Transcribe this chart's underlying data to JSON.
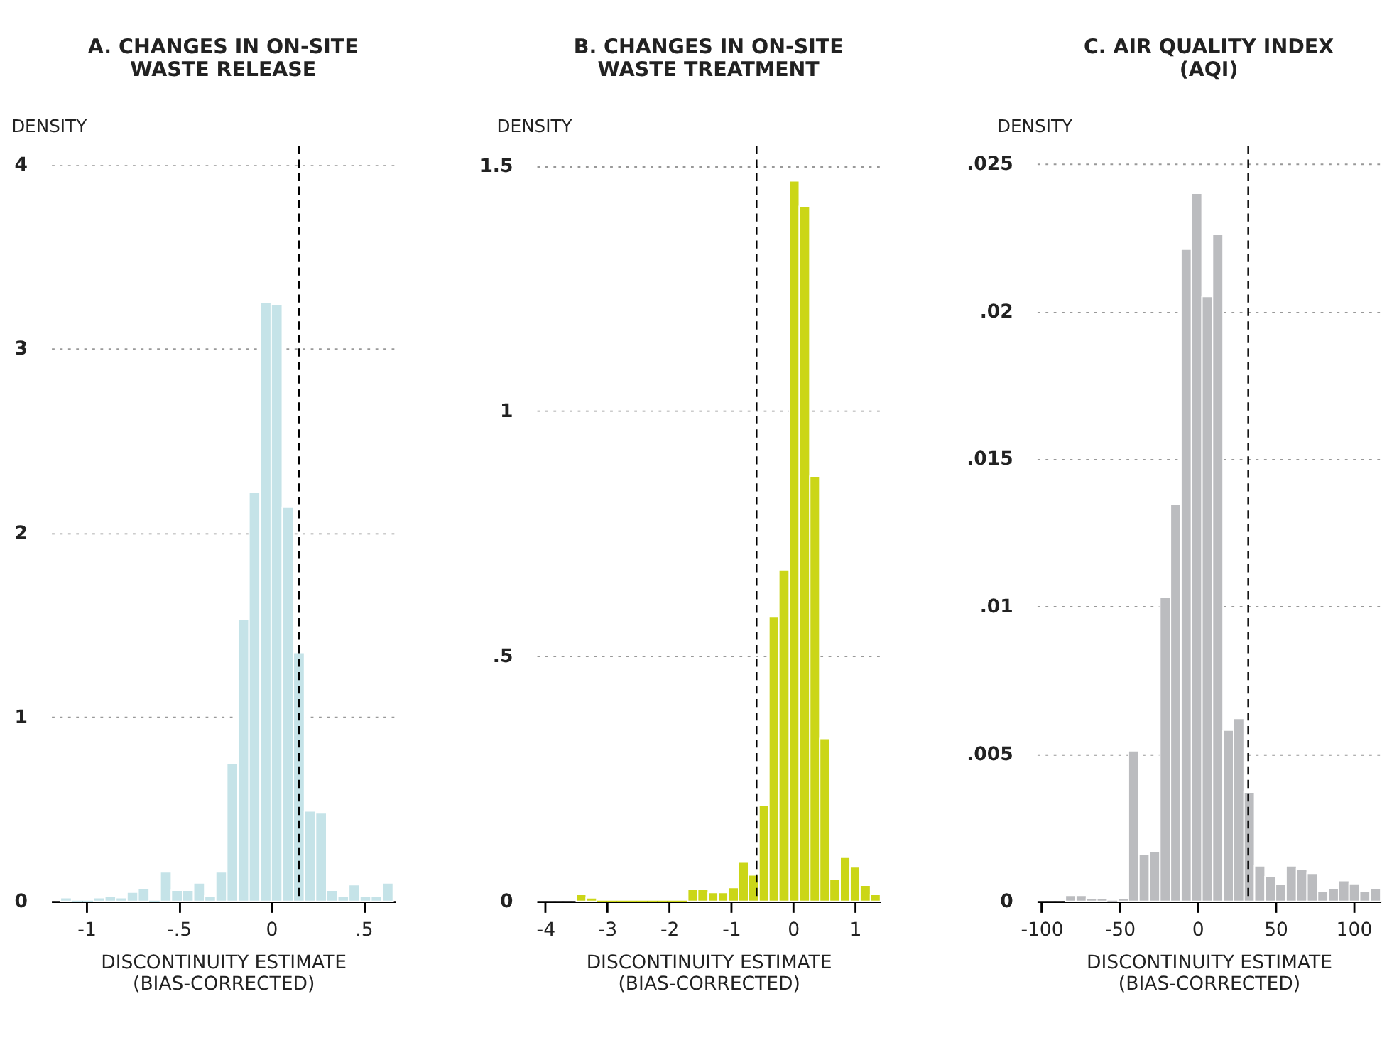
{
  "chart_data": [
    {
      "type": "histogram",
      "title": "A. CHANGES IN ON-SITE\nWASTE RELEASE",
      "ylabel": "DENSITY",
      "xlabel": "DISCONTINUITY ESTIMATE\n(BIAS-CORRECTED)",
      "color": "#c5e3e8",
      "bins": [
        -1.14,
        -1.08,
        -1.02,
        -0.96,
        -0.9,
        -0.84,
        -0.78,
        -0.72,
        -0.66,
        -0.6,
        -0.54,
        -0.48,
        -0.42,
        -0.36,
        -0.3,
        -0.24,
        -0.18,
        -0.12,
        -0.06,
        0,
        0.06,
        0.12,
        0.18,
        0.24,
        0.3,
        0.36,
        0.42,
        0.48,
        0.54,
        0.6,
        0.66
      ],
      "values": [
        0.02,
        0,
        0,
        0.02,
        0.03,
        0.02,
        0.05,
        0.07,
        0,
        0.16,
        0.06,
        0.06,
        0.1,
        0.03,
        0.16,
        0.75,
        1.53,
        2.22,
        3.25,
        3.24,
        2.14,
        1.35,
        0.49,
        0.48,
        0.06,
        0.03,
        0.09,
        0.03,
        0.03,
        0.1
      ],
      "xlim": [
        -1.19,
        0.67
      ],
      "xticks": [
        -1,
        {
          "value": -0.5,
          "label": "-.5"
        },
        0,
        {
          "value": 0.5,
          "label": ".5"
        }
      ],
      "ylim": [
        0,
        4.1
      ],
      "yticks": [
        0,
        1,
        2,
        3,
        4
      ],
      "grid": "y",
      "ref_lines": [
        {
          "axis": "x",
          "value": 0.15,
          "line_style": "dashed",
          "color": "#000000"
        }
      ]
    },
    {
      "type": "histogram",
      "title": "B. CHANGES IN ON-SITE\nWASTE TREATMENT",
      "ylabel": "DENSITY",
      "xlabel": "DISCONTINUITY ESTIMATE\n(BIAS-CORRECTED)",
      "color": "#cbd617",
      "bins": [
        -3.5,
        -3.34,
        -3.17,
        -3.01,
        -2.85,
        -2.68,
        -2.52,
        -2.35,
        -2.19,
        -2.03,
        -1.86,
        -1.7,
        -1.54,
        -1.37,
        -1.21,
        -1.05,
        -0.88,
        -0.72,
        -0.55,
        -0.39,
        -0.23,
        -0.06,
        0.1,
        0.27,
        0.43,
        0.59,
        0.76,
        0.92,
        1.08,
        1.25,
        1.41
      ],
      "values": [
        0.014,
        0.007,
        0,
        0,
        0,
        0,
        0,
        0,
        0,
        0,
        0,
        0.024,
        0.024,
        0.018,
        0.018,
        0.028,
        0.08,
        0.054,
        0.195,
        0.58,
        0.675,
        1.469,
        1.417,
        0.867,
        0.332,
        0.045,
        0.091,
        0.07,
        0.033,
        0.014
      ],
      "xlim": [
        -4.14,
        1.41
      ],
      "xticks": [
        -4,
        -3,
        -2,
        -1,
        0,
        1
      ],
      "ylim": [
        0,
        1.54
      ],
      "yticks": [
        0,
        {
          "value": 0.5,
          "label": ".5"
        },
        1,
        1.5
      ],
      "grid": "y",
      "ref_lines": [
        {
          "axis": "x",
          "value": -0.59,
          "line_style": "dashed",
          "color": "#000000"
        }
      ]
    },
    {
      "type": "histogram",
      "title": "C. AIR QUALITY INDEX\n(AQI)",
      "ylabel": "DENSITY",
      "xlabel": "DISCONTINUITY ESTIMATE\n(BIAS-CORRECTED)",
      "color": "#bbbcbf",
      "bins": [
        -84.7,
        -77.97,
        -71.23,
        -64.5,
        -57.76,
        -51.03,
        -44.29,
        -37.56,
        -30.82,
        -24.09,
        -17.35,
        -10.62,
        -3.88,
        2.86,
        9.59,
        16.33,
        23.06,
        29.8,
        36.53,
        43.27,
        50.0,
        56.74,
        63.47,
        70.21,
        76.94,
        83.68,
        90.41,
        97.15,
        103.88,
        110.62,
        117.35
      ],
      "values": [
        0.0002,
        0.0002,
        0.0001,
        0.0001,
        0,
        0.0001,
        0.0051,
        0.0016,
        0.0017,
        0.0103,
        0.01345,
        0.0221,
        0.024,
        0.0205,
        0.0226,
        0.0058,
        0.0062,
        0.0037,
        0.0012,
        0.00084,
        0.00059,
        0.0012,
        0.0011,
        0.00095,
        0.00035,
        0.00045,
        0.0007,
        0.0006,
        0.00035,
        0.00045
      ],
      "xlim": [
        -103,
        117.35
      ],
      "xticks": [
        -100,
        -50,
        0,
        50,
        100
      ],
      "ylim": [
        0,
        0.0256
      ],
      "yticks": [
        0,
        {
          "value": 0.005,
          "label": ".005"
        },
        {
          "value": 0.01,
          "label": ".01"
        },
        {
          "value": 0.015,
          "label": ".015"
        },
        {
          "value": 0.02,
          "label": ".02"
        },
        {
          "value": 0.025,
          "label": ".025"
        }
      ],
      "grid": "y",
      "ref_lines": [
        {
          "axis": "x",
          "value": 32.5,
          "line_style": "dashed",
          "color": "#000000"
        }
      ]
    }
  ]
}
